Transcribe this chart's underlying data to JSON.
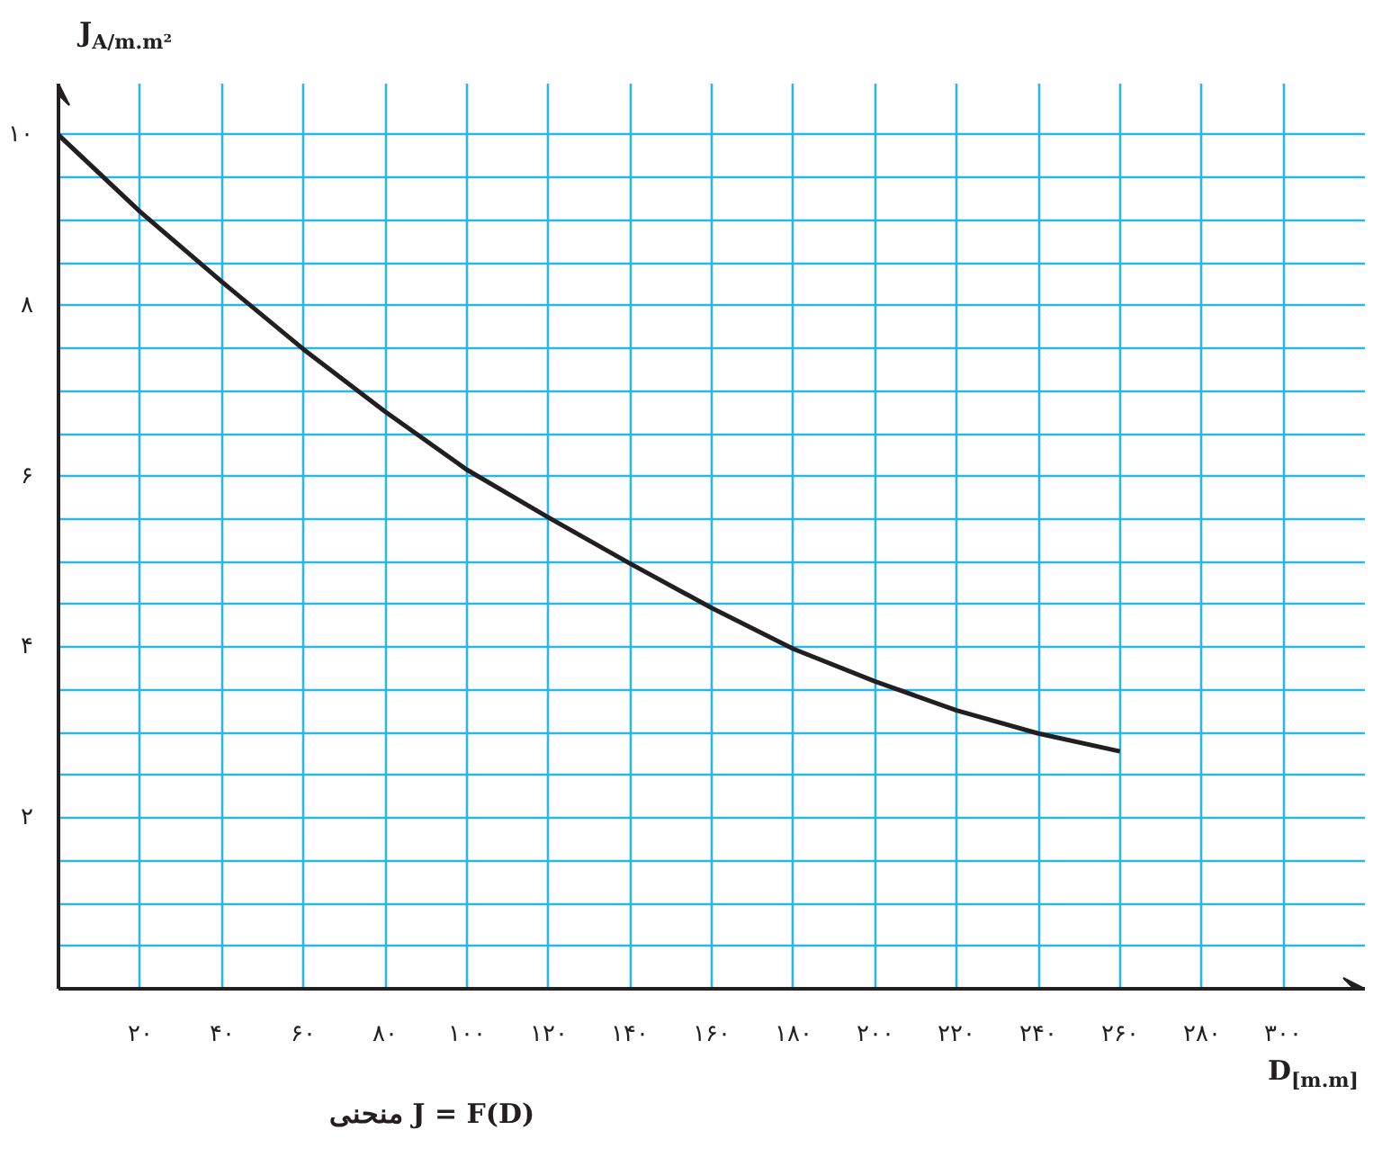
{
  "chart_data": {
    "type": "line",
    "xlabel": "D$_{[m.m]}$",
    "ylabel": "J$_{A/m.m²}$",
    "annotations": [
      "منحنی  J = F(D)"
    ],
    "x": [
      0,
      20,
      40,
      60,
      80,
      100,
      120,
      140,
      160,
      180,
      200,
      220,
      240,
      260
    ],
    "series": [
      {
        "color": "#231f20",
        "values": [
          10,
          9.1,
          8.28,
          7.49,
          6.76,
          6.08,
          5.52,
          4.98,
          4.46,
          3.98,
          3.6,
          3.26,
          2.99,
          2.78
        ]
      }
    ],
    "xlim": [
      0,
      320
    ],
    "ylim": [
      0,
      10.6
    ],
    "xticks": [
      {
        "value": 20,
        "label": "۲۰"
      },
      {
        "value": 40,
        "label": "۴۰"
      },
      {
        "value": 60,
        "label": "۶۰"
      },
      {
        "value": 80,
        "label": "۸۰"
      },
      {
        "value": 100,
        "label": "۱۰۰"
      },
      {
        "value": 120,
        "label": "۱۲۰"
      },
      {
        "value": 140,
        "label": "۱۴۰"
      },
      {
        "value": 160,
        "label": "۱۶۰"
      },
      {
        "value": 180,
        "label": "۱۸۰"
      },
      {
        "value": 200,
        "label": "۲۰۰"
      },
      {
        "value": 220,
        "label": "۲۲۰"
      },
      {
        "value": 240,
        "label": "۲۴۰"
      },
      {
        "value": 260,
        "label": "۲۶۰"
      },
      {
        "value": 280,
        "label": "۲۸۰"
      },
      {
        "value": 300,
        "label": "۳۰۰"
      }
    ],
    "yticks": [
      {
        "value": 0.5,
        "label": null
      },
      {
        "value": 1,
        "label": null
      },
      {
        "value": 1.5,
        "label": null
      },
      {
        "value": 2,
        "label": "۲"
      },
      {
        "value": 2.5,
        "label": null
      },
      {
        "value": 3,
        "label": null
      },
      {
        "value": 3.5,
        "label": null
      },
      {
        "value": 4,
        "label": "۴"
      },
      {
        "value": 4.5,
        "label": null
      },
      {
        "value": 5,
        "label": null
      },
      {
        "value": 5.5,
        "label": null
      },
      {
        "value": 6,
        "label": "۶"
      },
      {
        "value": 6.5,
        "label": null
      },
      {
        "value": 7,
        "label": null
      },
      {
        "value": 7.5,
        "label": null
      },
      {
        "value": 8,
        "label": "۸"
      },
      {
        "value": 8.5,
        "label": null
      },
      {
        "value": 9,
        "label": null
      },
      {
        "value": 9.5,
        "label": null
      },
      {
        "value": 10,
        "label": "۱۰"
      }
    ],
    "grid": true,
    "line_style": "solid",
    "marker": "none"
  }
}
